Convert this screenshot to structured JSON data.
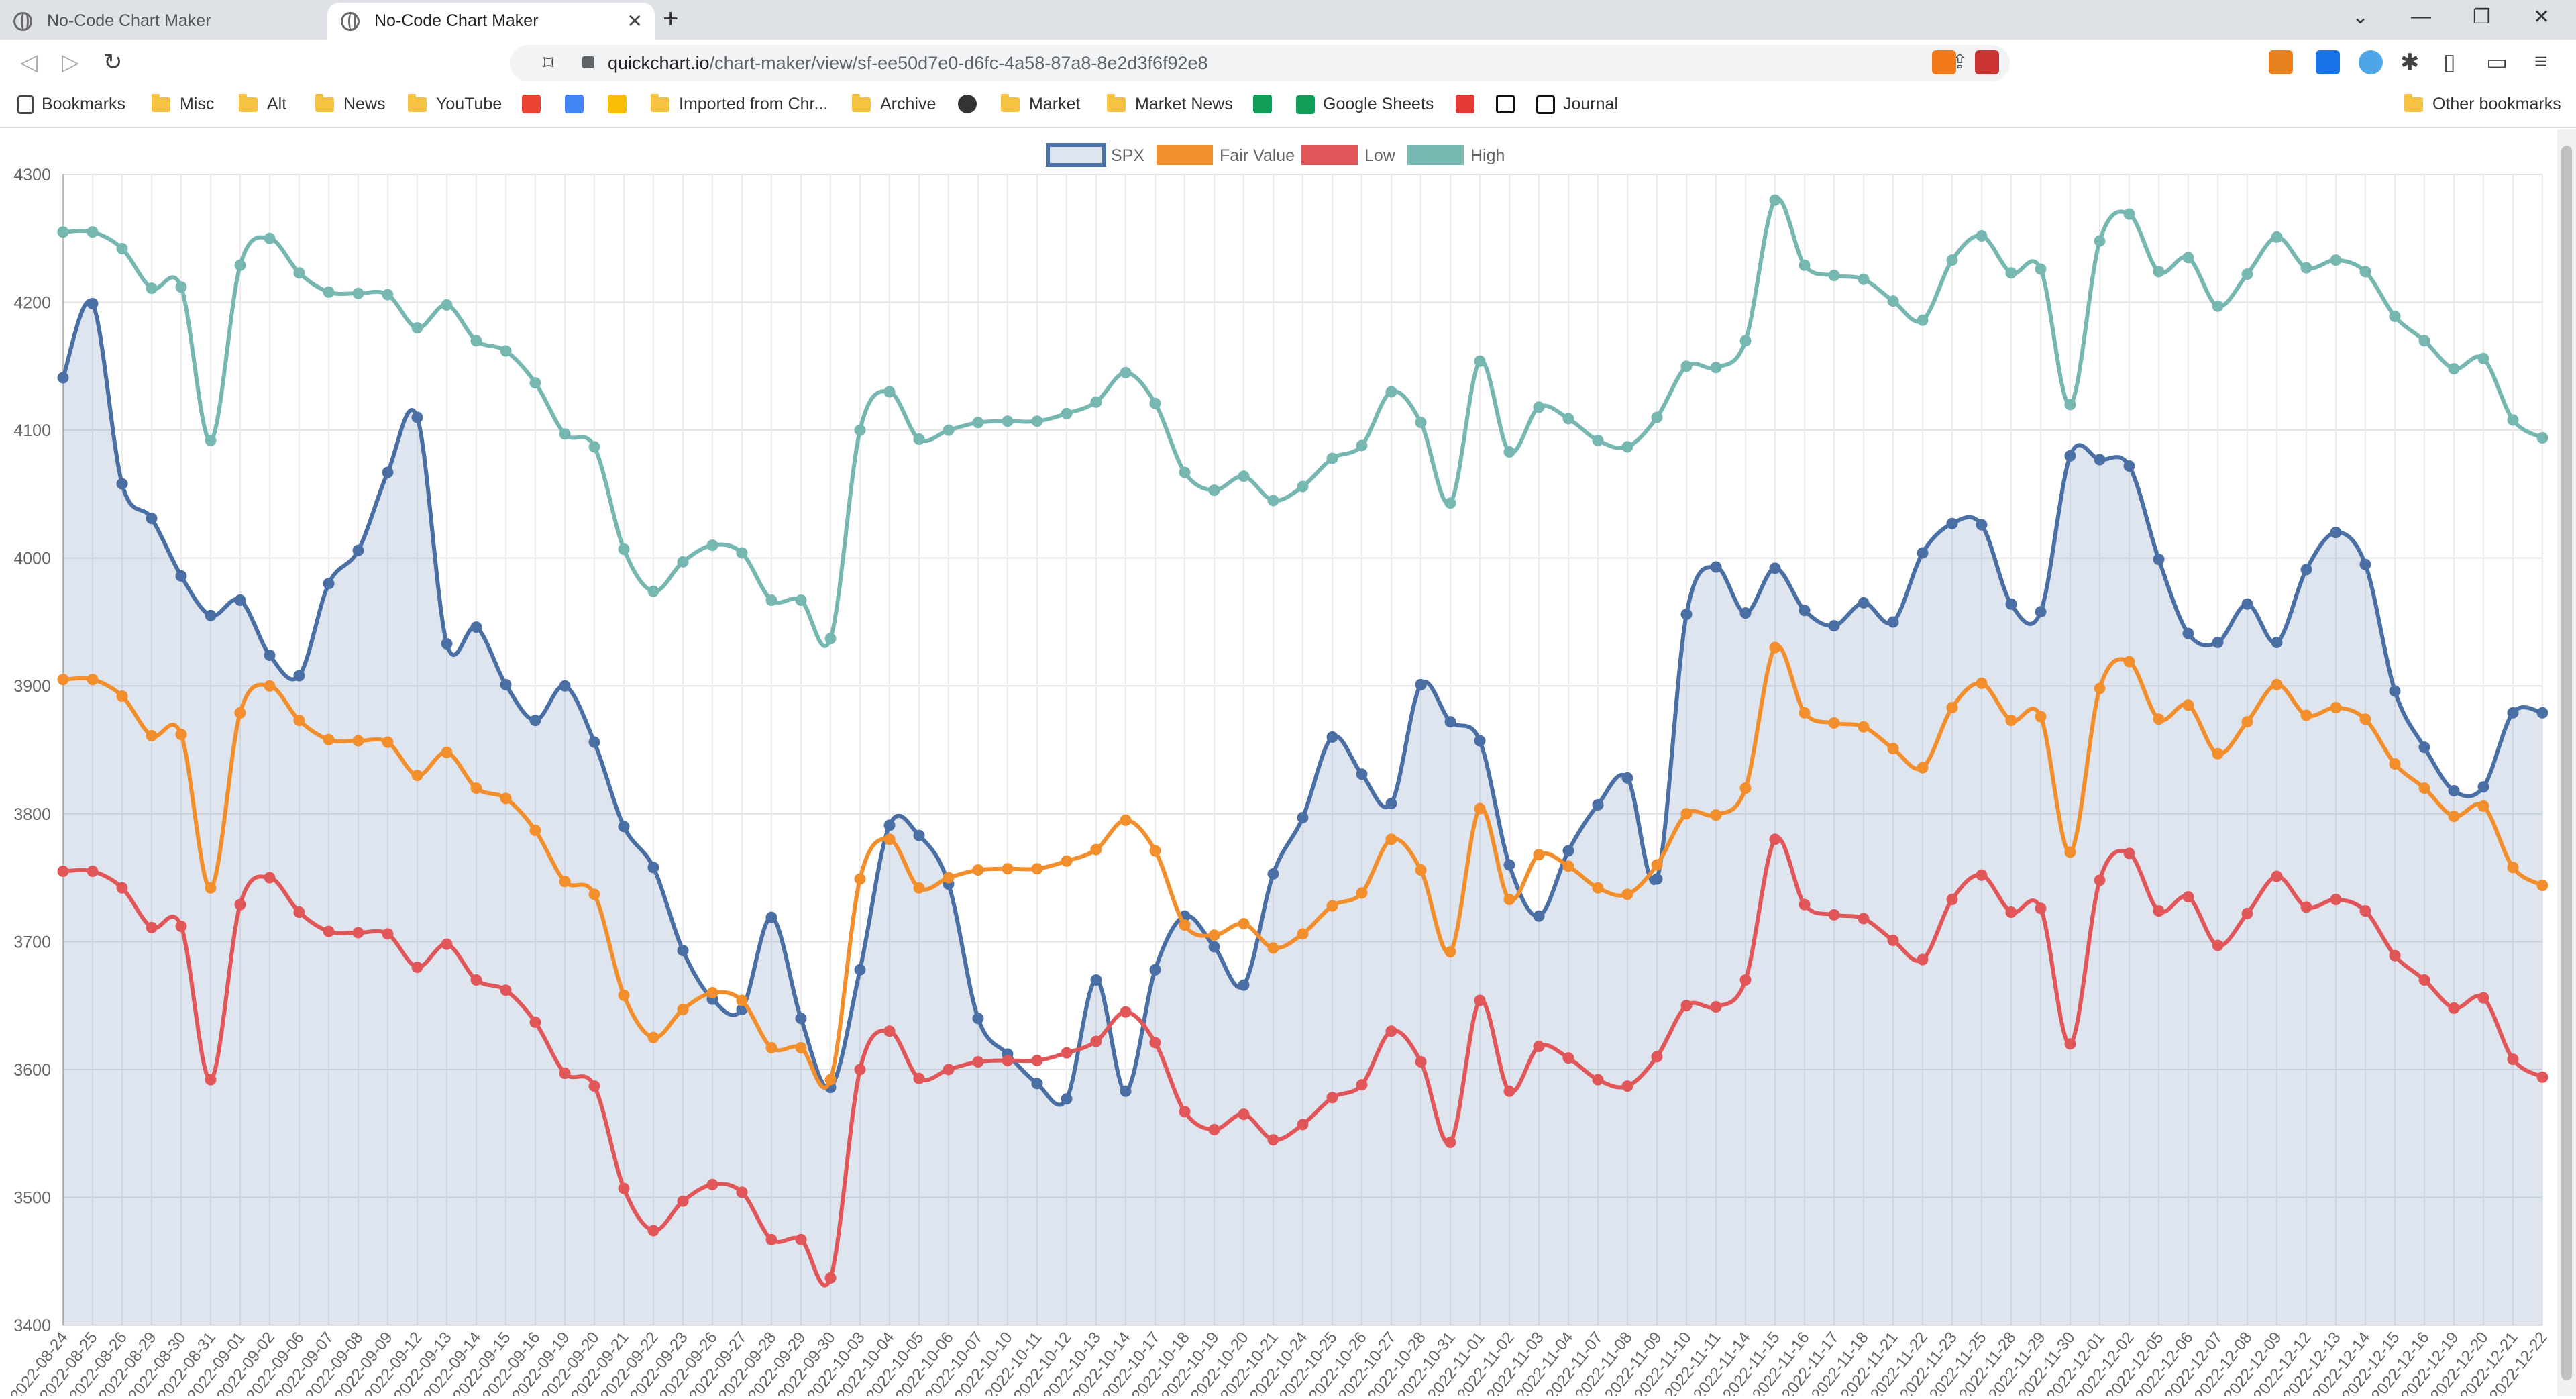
{
  "browser": {
    "tabs": [
      {
        "label": "No-Code Chart Maker",
        "active": false
      },
      {
        "label": "No-Code Chart Maker",
        "active": true
      }
    ],
    "url_host": "quickchart.io",
    "url_path": "/chart-maker/view/sf-ee50d7e0-d6fc-4a58-87a8-8e2d3f6f92e8",
    "bookmarks": [
      "Bookmarks",
      "Misc",
      "Alt",
      "News",
      "YouTube",
      "Imported from Chr...",
      "Archive",
      "Market",
      "Market News",
      "Google Sheets",
      "Journal"
    ],
    "other_bookmarks": "Other bookmarks",
    "icons": [
      "back-icon",
      "forward-icon",
      "reload-icon",
      "bookmark-icon",
      "lock-icon",
      "share-icon",
      "extensions-icon"
    ]
  },
  "colors": {
    "spx": "#4a6fa5",
    "spx_fill": "rgba(74,111,165,0.18)",
    "fair": "#f28e2b",
    "low": "#e15759",
    "high": "#76b7b2"
  },
  "chart_data": {
    "type": "line",
    "title": "",
    "xlabel": "",
    "ylabel": "",
    "ylim": [
      3400,
      4300
    ],
    "yticks": [
      3400,
      3500,
      3600,
      3700,
      3800,
      3900,
      4000,
      4100,
      4200,
      4300
    ],
    "grid": true,
    "legend": "top-center",
    "x": [
      "2022-08-24",
      "2022-08-25",
      "2022-08-26",
      "2022-08-29",
      "2022-08-30",
      "2022-08-31",
      "2022-09-01",
      "2022-09-02",
      "2022-09-06",
      "2022-09-07",
      "2022-09-08",
      "2022-09-09",
      "2022-09-12",
      "2022-09-13",
      "2022-09-14",
      "2022-09-15",
      "2022-09-16",
      "2022-09-19",
      "2022-09-20",
      "2022-09-21",
      "2022-09-22",
      "2022-09-23",
      "2022-09-26",
      "2022-09-27",
      "2022-09-28",
      "2022-09-29",
      "2022-09-30",
      "2022-10-03",
      "2022-10-04",
      "2022-10-05",
      "2022-10-06",
      "2022-10-07",
      "2022-10-10",
      "2022-10-11",
      "2022-10-12",
      "2022-10-13",
      "2022-10-14",
      "2022-10-17",
      "2022-10-18",
      "2022-10-19",
      "2022-10-20",
      "2022-10-21",
      "2022-10-24",
      "2022-10-25",
      "2022-10-26",
      "2022-10-27",
      "2022-10-28",
      "2022-10-31",
      "2022-11-01",
      "2022-11-02",
      "2022-11-03",
      "2022-11-04",
      "2022-11-07",
      "2022-11-08",
      "2022-11-09",
      "2022-11-10",
      "2022-11-11",
      "2022-11-14",
      "2022-11-15",
      "2022-11-16",
      "2022-11-17",
      "2022-11-18",
      "2022-11-21",
      "2022-11-22",
      "2022-11-23",
      "2022-11-25",
      "2022-11-28",
      "2022-11-29",
      "2022-11-30",
      "2022-12-01",
      "2022-12-02",
      "2022-12-05",
      "2022-12-06",
      "2022-12-07",
      "2022-12-08",
      "2022-12-09",
      "2022-12-12",
      "2022-12-13",
      "2022-12-14",
      "2022-12-15",
      "2022-12-16",
      "2022-12-19",
      "2022-12-20",
      "2022-12-21",
      "2022-12-22"
    ],
    "x_tick_labels": [
      "2022-08-24",
      "2022-08-25",
      "2022-08-26",
      "2022-08-29",
      "2022-08-30",
      "2022-08-31",
      "2022-09-01",
      "2022-09-02",
      "2022-09-06",
      "2022-09-07",
      "2022-09-08",
      "2022-09-09",
      "2022-09-12",
      "2022-09-13",
      "2022-09-14",
      "2022-09-15",
      "2022-09-16",
      "2022-09-19",
      "2022-09-20",
      "2022-09-21",
      "2022-09-22",
      "2022-09-23",
      "2022-09-26",
      "2022-09-27",
      "2022-09-28",
      "2022-09-29",
      "2022-09-30",
      "2022-10-03",
      "2022-10-04",
      "2022-10-05",
      "2022-10-06",
      "2022-10-07",
      "2022-10-10",
      "2022-10-11",
      "2022-10-12",
      "2022-10-13",
      "2022-10-14",
      "2022-10-17",
      "2022-10-18",
      "2022-10-19",
      "2022-10-20",
      "2022-10-21",
      "2022-10-24",
      "2022-10-25",
      "2022-10-26",
      "2022-10-27",
      "2022-10-28",
      "2022-10-31",
      "2022-11-01",
      "2022-11-02",
      "2022-11-03",
      "2022-11-04",
      "2022-11-07",
      "2022-11-08",
      "2022-11-09",
      "2022-11-10",
      "2022-11-11",
      "2022-11-14",
      "2022-11-15",
      "2022-11-16",
      "2022-11-17",
      "2022-11-18",
      "2022-11-21",
      "2022-11-22",
      "2022-11-23",
      "2022-11-25",
      "2022-11-28",
      "2022-11-29",
      "2022-11-30",
      "2022-12-01",
      "2022-12-02",
      "2022-12-05",
      "2022-12-06",
      "2022-12-07",
      "2022-12-08",
      "2022-12-09",
      "2022-12-12",
      "2022-12-13",
      "2022-12-14",
      "2022-12-15",
      "2022-12-16",
      "2022-12-19",
      "2022-12-20",
      "2022-12-21",
      "2022-12-22"
    ],
    "series": [
      {
        "name": "SPX",
        "key": "spx",
        "fill": true,
        "values": [
          4141,
          4199,
          4058,
          4031,
          3986,
          3955,
          3967,
          3924,
          3908,
          3980,
          4006,
          4067,
          4110,
          3933,
          3946,
          3901,
          3873,
          3900,
          3856,
          3790,
          3758,
          3693,
          3655,
          3647,
          3719,
          3640,
          3586,
          3678,
          3791,
          3783,
          3745,
          3640,
          3612,
          3589,
          3577,
          3670,
          3583,
          3678,
          3720,
          3696,
          3666,
          3753,
          3797,
          3860,
          3831,
          3808,
          3901,
          3872,
          3857,
          3760,
          3720,
          3771,
          3807,
          3828,
          3749,
          3956,
          3993,
          3957,
          3992,
          3959,
          3947,
          3965,
          3950,
          4004,
          4027,
          4026,
          3964,
          3958,
          4080,
          4077,
          4072,
          3999,
          3941,
          3934,
          3964,
          3934,
          3991,
          4020,
          3995,
          3896,
          3852,
          3818,
          3821,
          3879,
          3879
        ]
      },
      {
        "name": "Fair Value",
        "key": "fair",
        "fill": false,
        "values": [
          3905,
          3905,
          3892,
          3861,
          3862,
          3742,
          3879,
          3900,
          3873,
          3858,
          3857,
          3856,
          3830,
          3848,
          3820,
          3812,
          3787,
          3747,
          3737,
          3658,
          3625,
          3647,
          3660,
          3654,
          3617,
          3617,
          3592,
          3749,
          3780,
          3742,
          3750,
          3756,
          3757,
          3757,
          3763,
          3772,
          3795,
          3771,
          3713,
          3705,
          3714,
          3695,
          3706,
          3728,
          3738,
          3780,
          3756,
          3692,
          3804,
          3733,
          3768,
          3759,
          3742,
          3737,
          3760,
          3800,
          3799,
          3820,
          3930,
          3879,
          3871,
          3868,
          3851,
          3836,
          3883,
          3902,
          3873,
          3876,
          3770,
          3898,
          3919,
          3874,
          3885,
          3847,
          3872,
          3901,
          3877,
          3883,
          3874,
          3839,
          3820,
          3798,
          3806,
          3758,
          3744
        ]
      },
      {
        "name": "Low",
        "key": "low",
        "fill": false,
        "values": [
          3755,
          3755,
          3742,
          3711,
          3712,
          3592,
          3729,
          3750,
          3723,
          3708,
          3707,
          3706,
          3680,
          3698,
          3670,
          3662,
          3637,
          3597,
          3587,
          3507,
          3474,
          3497,
          3510,
          3504,
          3467,
          3467,
          3437,
          3600,
          3630,
          3593,
          3600,
          3606,
          3607,
          3607,
          3613,
          3622,
          3645,
          3621,
          3567,
          3553,
          3565,
          3545,
          3557,
          3578,
          3588,
          3630,
          3606,
          3543,
          3654,
          3583,
          3618,
          3609,
          3592,
          3587,
          3610,
          3650,
          3649,
          3670,
          3780,
          3729,
          3721,
          3718,
          3701,
          3686,
          3733,
          3752,
          3723,
          3726,
          3620,
          3748,
          3769,
          3724,
          3735,
          3697,
          3722,
          3751,
          3727,
          3733,
          3724,
          3689,
          3670,
          3648,
          3656,
          3608,
          3594
        ]
      },
      {
        "name": "High",
        "key": "high",
        "fill": false,
        "values": [
          4255,
          4255,
          4242,
          4211,
          4212,
          4092,
          4229,
          4250,
          4223,
          4208,
          4207,
          4206,
          4180,
          4198,
          4170,
          4162,
          4137,
          4097,
          4087,
          4007,
          3974,
          3997,
          4010,
          4004,
          3967,
          3967,
          3937,
          4100,
          4130,
          4093,
          4100,
          4106,
          4107,
          4107,
          4113,
          4122,
          4145,
          4121,
          4067,
          4053,
          4064,
          4045,
          4056,
          4078,
          4088,
          4130,
          4106,
          4043,
          4154,
          4083,
          4118,
          4109,
          4092,
          4087,
          4110,
          4150,
          4149,
          4170,
          4280,
          4229,
          4221,
          4218,
          4201,
          4186,
          4233,
          4252,
          4223,
          4226,
          4120,
          4248,
          4269,
          4224,
          4235,
          4197,
          4222,
          4251,
          4227,
          4233,
          4224,
          4189,
          4170,
          4148,
          4156,
          4108,
          4094
        ]
      }
    ]
  }
}
